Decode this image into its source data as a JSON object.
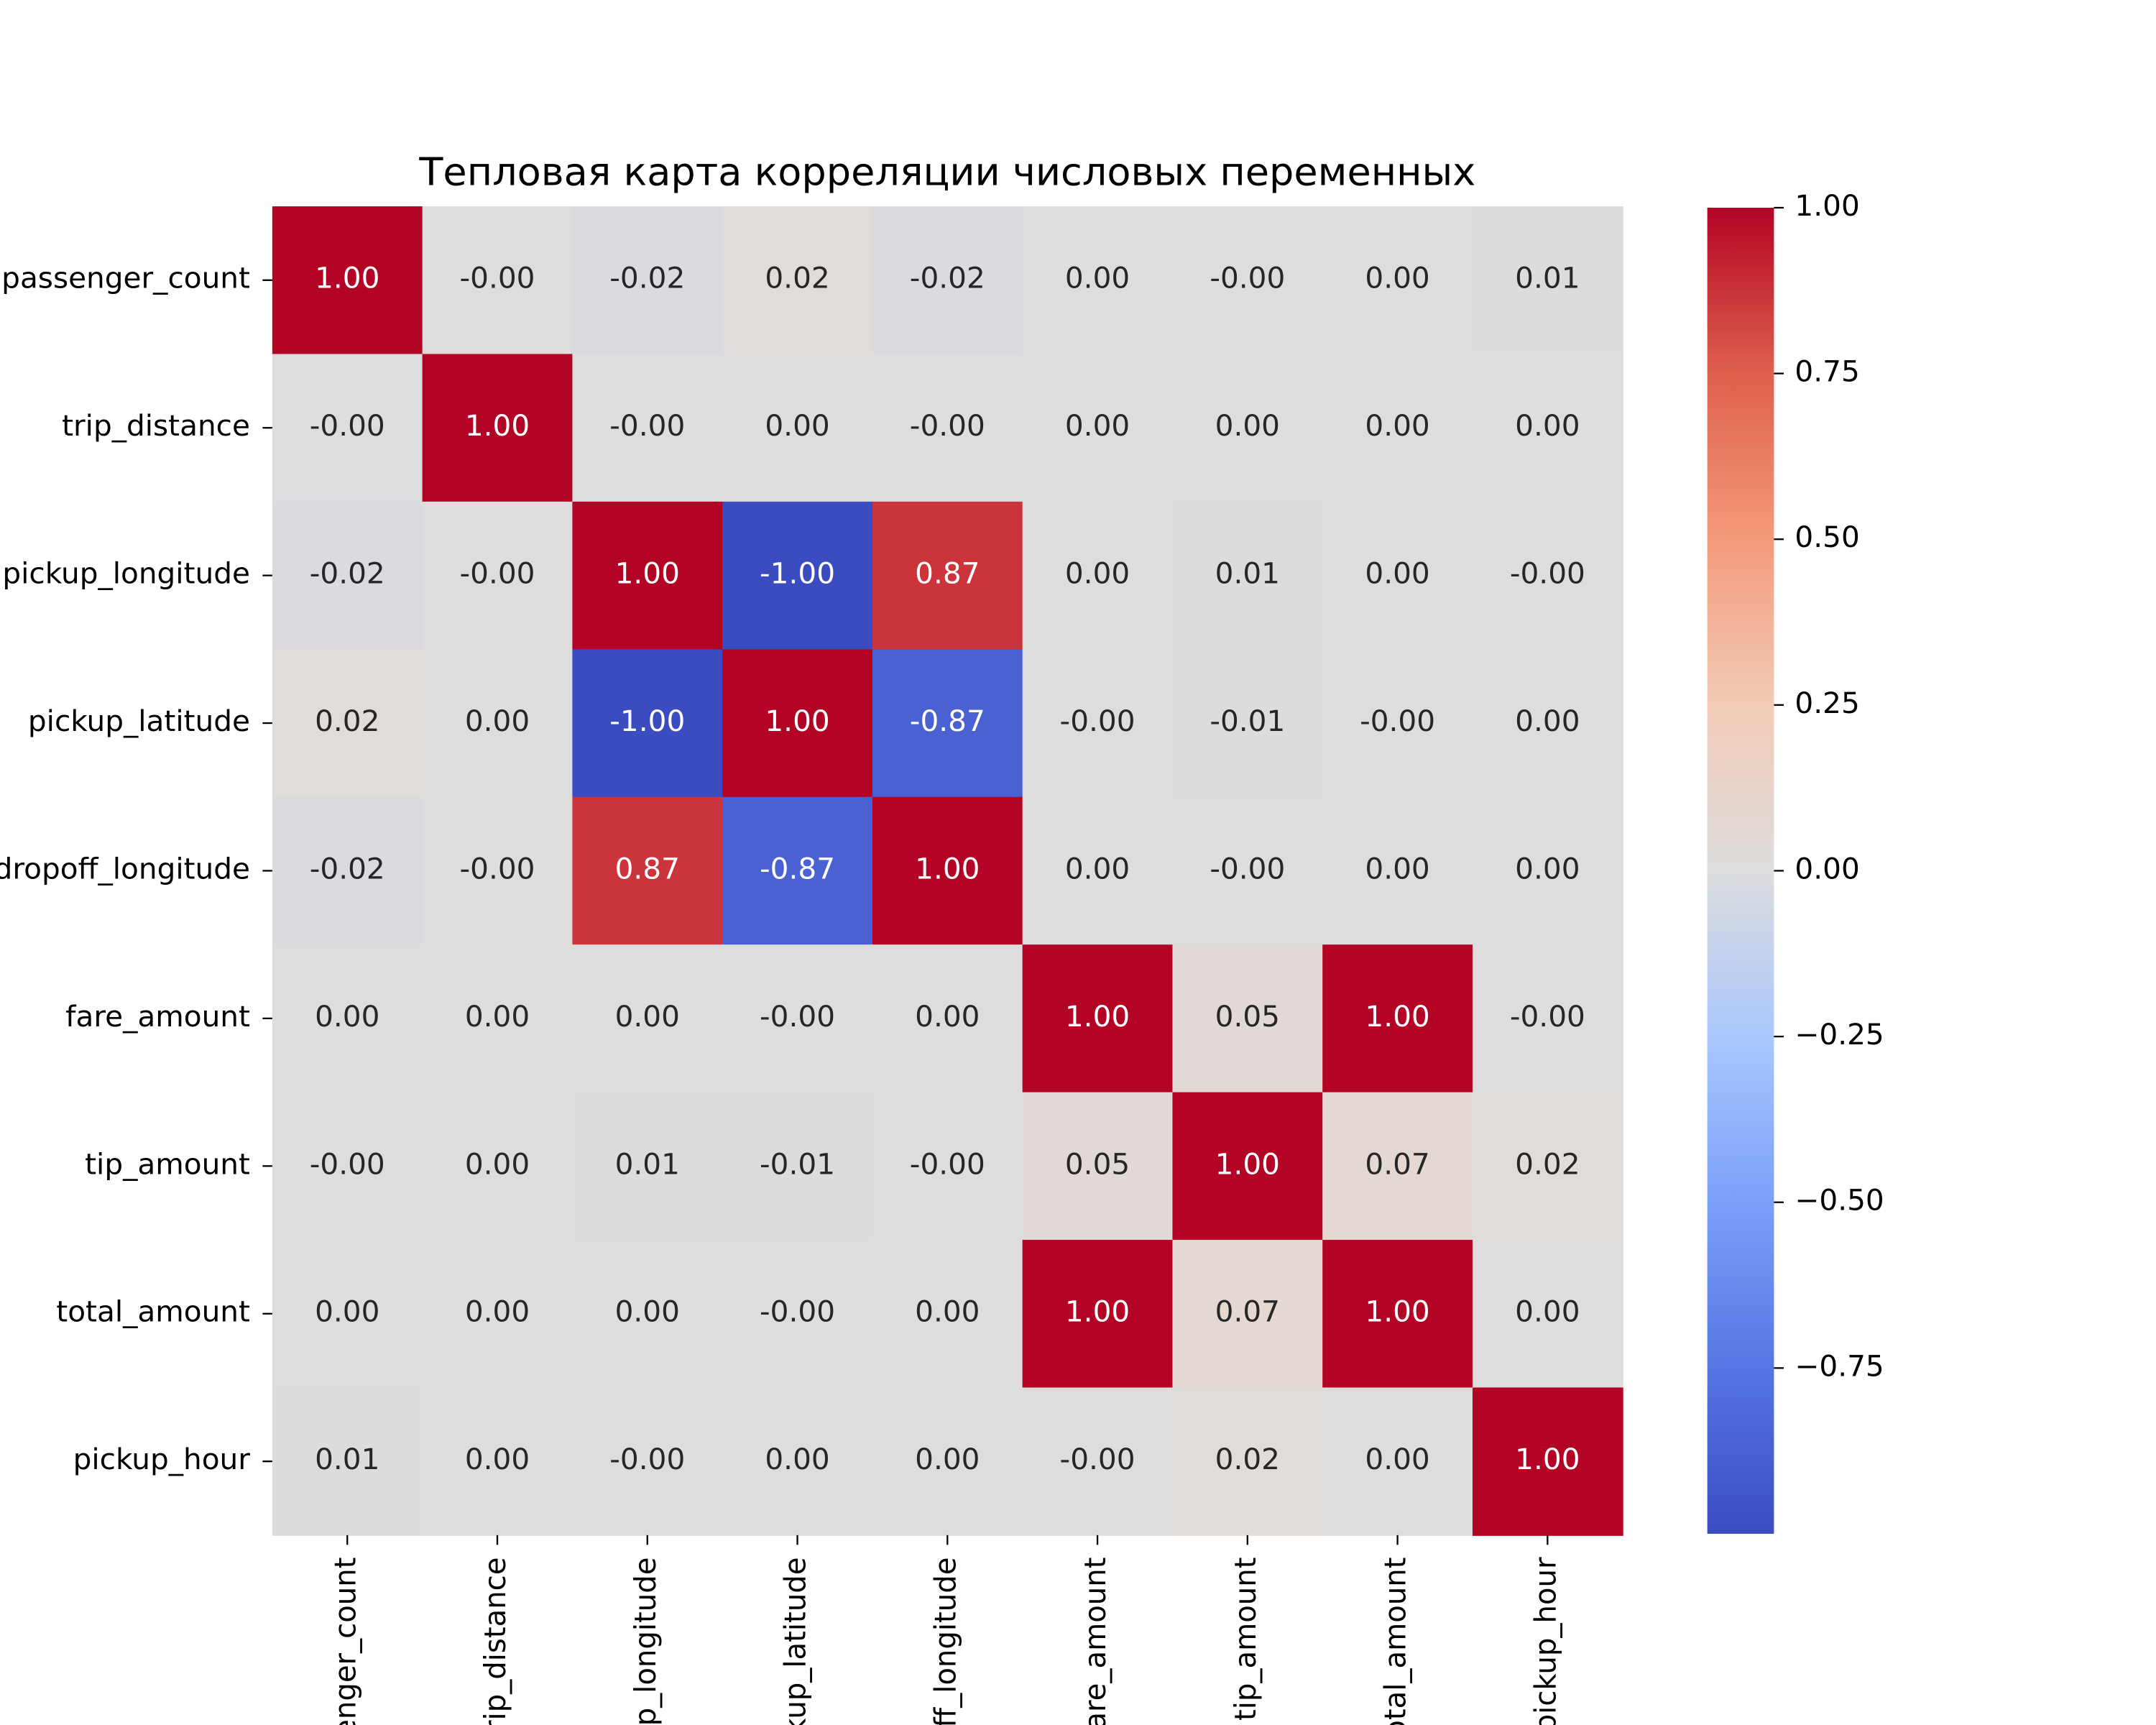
{
  "chart_data": {
    "type": "heatmap",
    "title": "Тепловая карта корреляции числовых переменных",
    "x_categories": [
      "passenger_count",
      "trip_distance",
      "pickup_longitude",
      "pickup_latitude",
      "dropoff_longitude",
      "fare_amount",
      "tip_amount",
      "total_amount",
      "pickup_hour"
    ],
    "y_categories": [
      "passenger_count",
      "trip_distance",
      "pickup_longitude",
      "pickup_latitude",
      "dropoff_longitude",
      "fare_amount",
      "tip_amount",
      "total_amount",
      "pickup_hour"
    ],
    "values": [
      [
        1,
        0,
        -0.02,
        0.02,
        -0.02,
        0,
        0,
        0,
        0.01
      ],
      [
        0,
        1,
        0,
        0,
        0,
        0,
        0,
        0,
        0
      ],
      [
        -0.02,
        0,
        1,
        -1,
        0.87,
        0,
        0.01,
        0,
        0
      ],
      [
        0.02,
        0,
        -1,
        1,
        -0.87,
        0,
        -0.01,
        0,
        0
      ],
      [
        -0.02,
        0,
        0.87,
        -0.87,
        1,
        0,
        0,
        0,
        0
      ],
      [
        0,
        0,
        0,
        0,
        0,
        1,
        0.05,
        1,
        0
      ],
      [
        0,
        0,
        0.01,
        -0.01,
        0,
        0.05,
        1,
        0.07,
        0.02
      ],
      [
        0,
        0,
        0,
        0,
        0,
        1,
        0.07,
        1,
        0
      ],
      [
        0.01,
        0,
        0,
        0,
        0,
        0,
        0.02,
        0,
        1
      ]
    ],
    "value_labels": [
      [
        "1.00",
        "-0.00",
        "-0.02",
        "0.02",
        "-0.02",
        "0.00",
        "-0.00",
        "0.00",
        "0.01"
      ],
      [
        "-0.00",
        "1.00",
        "-0.00",
        "0.00",
        "-0.00",
        "0.00",
        "0.00",
        "0.00",
        "0.00"
      ],
      [
        "-0.02",
        "-0.00",
        "1.00",
        "-1.00",
        "0.87",
        "0.00",
        "0.01",
        "0.00",
        "-0.00"
      ],
      [
        "0.02",
        "0.00",
        "-1.00",
        "1.00",
        "-0.87",
        "-0.00",
        "-0.01",
        "-0.00",
        "0.00"
      ],
      [
        "-0.02",
        "-0.00",
        "0.87",
        "-0.87",
        "1.00",
        "0.00",
        "-0.00",
        "0.00",
        "0.00"
      ],
      [
        "0.00",
        "0.00",
        "0.00",
        "-0.00",
        "0.00",
        "1.00",
        "0.05",
        "1.00",
        "-0.00"
      ],
      [
        "-0.00",
        "0.00",
        "0.01",
        "-0.01",
        "-0.00",
        "0.05",
        "1.00",
        "0.07",
        "0.02"
      ],
      [
        "0.00",
        "0.00",
        "0.00",
        "-0.00",
        "0.00",
        "1.00",
        "0.07",
        "1.00",
        "0.00"
      ],
      [
        "0.01",
        "0.00",
        "-0.00",
        "0.00",
        "0.00",
        "-0.00",
        "0.02",
        "0.00",
        "1.00"
      ]
    ],
    "colormap": "coolwarm",
    "clim": [
      -1,
      1
    ],
    "cticks": [
      {
        "value": 1,
        "label": "1.00"
      },
      {
        "value": 0.75,
        "label": "0.75"
      },
      {
        "value": 0.5,
        "label": "0.50"
      },
      {
        "value": 0.25,
        "label": "0.25"
      },
      {
        "value": 0,
        "label": "0.00"
      },
      {
        "value": -0.25,
        "label": "−0.25"
      },
      {
        "value": -0.5,
        "label": "−0.50"
      },
      {
        "value": -0.75,
        "label": "−0.75"
      }
    ]
  }
}
